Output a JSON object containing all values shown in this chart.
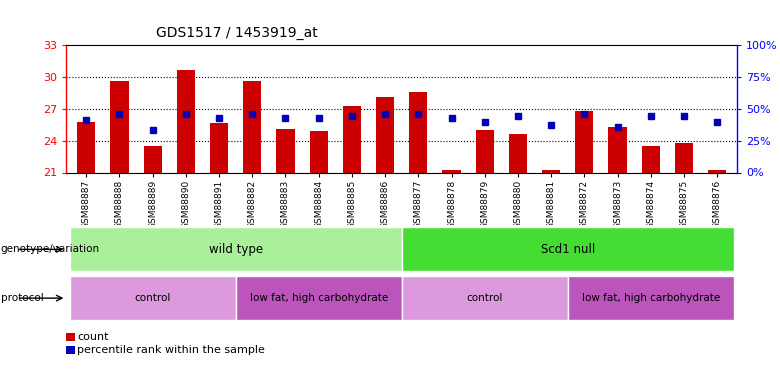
{
  "title": "GDS1517 / 1453919_at",
  "samples": [
    "GSM88887",
    "GSM88888",
    "GSM88889",
    "GSM88890",
    "GSM88891",
    "GSM88882",
    "GSM88883",
    "GSM88884",
    "GSM88885",
    "GSM88886",
    "GSM88877",
    "GSM88878",
    "GSM88879",
    "GSM88880",
    "GSM88881",
    "GSM88872",
    "GSM88873",
    "GSM88874",
    "GSM88875",
    "GSM88876"
  ],
  "bar_values": [
    25.8,
    29.6,
    23.5,
    30.6,
    25.7,
    29.6,
    25.1,
    24.9,
    27.3,
    28.1,
    28.6,
    21.2,
    25.0,
    24.6,
    21.2,
    26.8,
    25.3,
    23.5,
    23.8,
    21.2
  ],
  "dot_values": [
    25.9,
    26.5,
    25.0,
    26.5,
    26.1,
    26.5,
    26.1,
    26.1,
    26.3,
    26.5,
    26.5,
    26.1,
    25.8,
    26.3,
    25.5,
    26.5,
    25.3,
    26.3,
    26.3,
    25.8
  ],
  "ymin": 21,
  "ymax": 33,
  "yticks": [
    21,
    24,
    27,
    30,
    33
  ],
  "y2min": 0,
  "y2max": 100,
  "y2ticks": [
    0,
    25,
    50,
    75,
    100
  ],
  "bar_color": "#cc0000",
  "dot_color": "#0000bb",
  "bar_baseline": 21,
  "genotype_groups": [
    {
      "label": "wild type",
      "start": 0,
      "end": 10,
      "color": "#aaf09a"
    },
    {
      "label": "Scd1 null",
      "start": 10,
      "end": 20,
      "color": "#44dd33"
    }
  ],
  "protocol_groups": [
    {
      "label": "control",
      "start": 0,
      "end": 5,
      "color": "#dd99dd"
    },
    {
      "label": "low fat, high carbohydrate",
      "start": 5,
      "end": 10,
      "color": "#bb55bb"
    },
    {
      "label": "control",
      "start": 10,
      "end": 15,
      "color": "#dd99dd"
    },
    {
      "label": "low fat, high carbohydrate",
      "start": 15,
      "end": 20,
      "color": "#bb55bb"
    }
  ],
  "genotype_label": "genotype/variation",
  "protocol_label": "protocol",
  "legend_count_label": "count",
  "legend_pct_label": "percentile rank within the sample",
  "bg_color": "#ffffff"
}
